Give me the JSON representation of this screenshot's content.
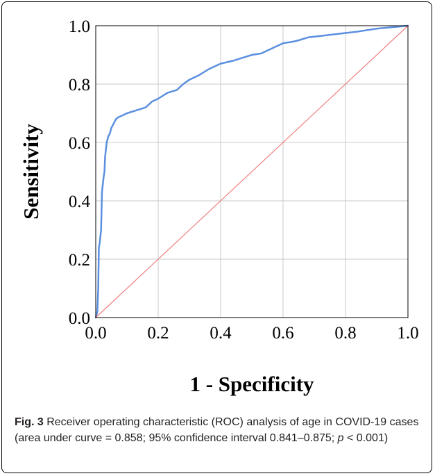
{
  "chart_data": {
    "type": "line",
    "xlabel": "1 - Specificity",
    "ylabel": "Sensitivity",
    "xlim": [
      0.0,
      1.0
    ],
    "ylim": [
      0.0,
      1.0
    ],
    "x_ticks": [
      "0.0",
      "0.2",
      "0.4",
      "0.6",
      "0.8",
      "1.0"
    ],
    "y_ticks": [
      "0.0",
      "0.2",
      "0.4",
      "0.6",
      "0.8",
      "1.0"
    ],
    "grid": true,
    "series": [
      {
        "role": "roc-curve",
        "color": "#5b8fe0",
        "x": [
          0.0,
          0.005,
          0.008,
          0.01,
          0.012,
          0.015,
          0.017,
          0.02,
          0.022,
          0.025,
          0.028,
          0.03,
          0.033,
          0.035,
          0.04,
          0.045,
          0.05,
          0.055,
          0.06,
          0.065,
          0.07,
          0.08,
          0.1,
          0.13,
          0.16,
          0.18,
          0.2,
          0.23,
          0.26,
          0.28,
          0.3,
          0.33,
          0.36,
          0.38,
          0.4,
          0.44,
          0.47,
          0.5,
          0.53,
          0.56,
          0.58,
          0.6,
          0.63,
          0.65,
          0.68,
          0.72,
          0.76,
          0.8,
          0.84,
          0.87,
          0.9,
          0.95,
          1.0
        ],
        "y": [
          0.0,
          0.02,
          0.1,
          0.24,
          0.25,
          0.28,
          0.3,
          0.43,
          0.45,
          0.48,
          0.5,
          0.55,
          0.58,
          0.6,
          0.62,
          0.63,
          0.65,
          0.66,
          0.67,
          0.68,
          0.685,
          0.69,
          0.7,
          0.71,
          0.72,
          0.74,
          0.75,
          0.77,
          0.78,
          0.8,
          0.815,
          0.83,
          0.85,
          0.86,
          0.87,
          0.88,
          0.89,
          0.9,
          0.905,
          0.92,
          0.93,
          0.94,
          0.945,
          0.95,
          0.96,
          0.965,
          0.97,
          0.975,
          0.98,
          0.985,
          0.99,
          0.995,
          1.0
        ]
      },
      {
        "role": "reference-line",
        "color": "#f08080",
        "x": [
          0.0,
          1.0
        ],
        "y": [
          0.0,
          1.0
        ]
      }
    ]
  },
  "caption": {
    "fig_label": "Fig. 3",
    "text_main": " Receiver operating characteristic (ROC) analysis of age in COVID-19 cases (area under curve = 0.858; 95% confidence interval 0.841–0.875; ",
    "p_symbol": "p",
    "text_end": " < 0.001)"
  }
}
